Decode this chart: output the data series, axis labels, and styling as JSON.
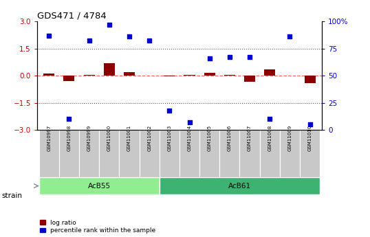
{
  "title": "GDS471 / 4784",
  "samples": [
    "GSM10997",
    "GSM10998",
    "GSM10999",
    "GSM11000",
    "GSM11001",
    "GSM11002",
    "GSM11003",
    "GSM11004",
    "GSM11005",
    "GSM11006",
    "GSM11007",
    "GSM11008",
    "GSM11009",
    "GSM11010"
  ],
  "log_ratio": [
    0.1,
    -0.3,
    0.05,
    0.7,
    0.2,
    0.02,
    -0.05,
    0.05,
    0.15,
    0.05,
    -0.35,
    0.35,
    0.02,
    -0.4
  ],
  "percentile": [
    87,
    10,
    82,
    97,
    86,
    82,
    18,
    7,
    66,
    67,
    67,
    10,
    86,
    5
  ],
  "ylim_left": [
    -3,
    3
  ],
  "ylim_right": [
    0,
    100
  ],
  "yticks_left": [
    -3,
    -1.5,
    0,
    1.5,
    3
  ],
  "yticks_right": [
    0,
    25,
    50,
    75,
    100
  ],
  "groups": [
    {
      "label": "AcB55",
      "start": 0,
      "end": 5,
      "color": "#90EE90"
    },
    {
      "label": "AcB61",
      "start": 6,
      "end": 13,
      "color": "#3CB371"
    }
  ],
  "bar_color": "#8B0000",
  "scatter_color": "#0000CD",
  "dashed_line_color": "#FF6666",
  "dotted_line_color": "#555555",
  "tick_label_color_left": "#CC0000",
  "tick_label_color_right": "#0000CC",
  "legend_items": [
    "log ratio",
    "percentile rank within the sample"
  ],
  "legend_colors": [
    "#8B0000",
    "#0000CD"
  ],
  "strain_label": "strain",
  "bar_width": 0.55
}
